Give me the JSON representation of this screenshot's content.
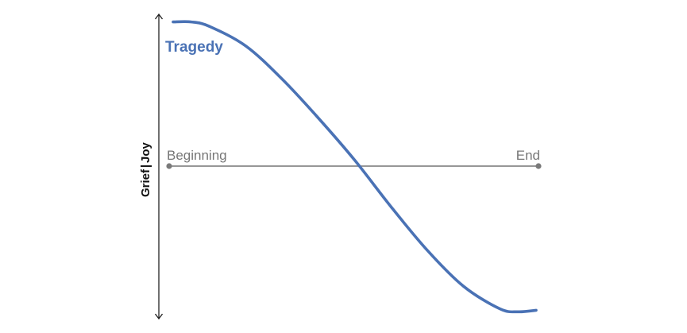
{
  "chart_data": {
    "type": "line",
    "title": "",
    "x_axis": {
      "start_label": "Beginning",
      "end_label": "End",
      "range": [
        0,
        1
      ]
    },
    "y_axis": {
      "positive_label": "Joy",
      "negative_label": "Grief",
      "separator": "|",
      "range": [
        -1,
        1
      ]
    },
    "series": [
      {
        "name": "Tragedy",
        "color": "#4a72b5",
        "x": [
          0,
          0.05,
          0.1,
          0.2,
          0.3,
          0.4,
          0.5,
          0.6,
          0.7,
          0.8,
          0.9,
          0.95,
          1.0
        ],
        "y": [
          0.96,
          0.96,
          0.93,
          0.8,
          0.58,
          0.32,
          0.04,
          -0.27,
          -0.56,
          -0.8,
          -0.95,
          -0.97,
          -0.96
        ]
      }
    ],
    "grid": false,
    "legend": "inline"
  }
}
